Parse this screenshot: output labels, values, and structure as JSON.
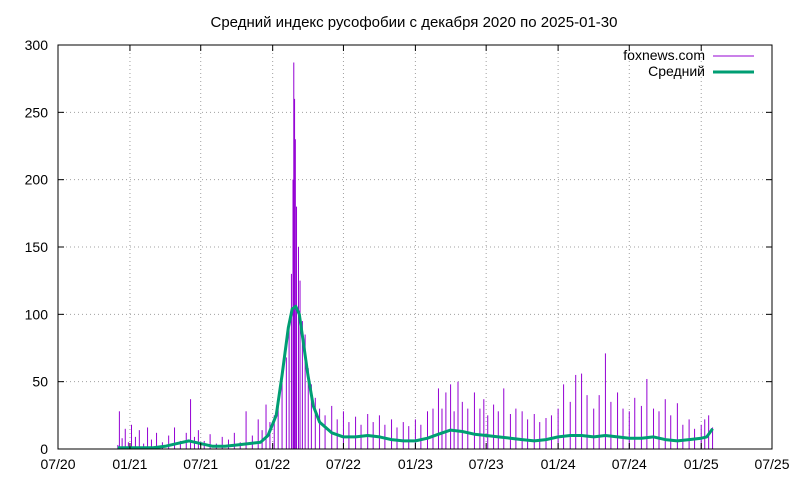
{
  "chart_data": {
    "type": "line",
    "title": "Средний индекс русофобии с декабря 2020  по 2025-01-30",
    "xlabel": "",
    "ylabel": "",
    "x_axis": {
      "type": "date",
      "range": [
        "2020-07-01",
        "2025-07-01"
      ],
      "tick_labels": [
        "07/20",
        "01/21",
        "07/21",
        "01/22",
        "07/22",
        "01/23",
        "07/23",
        "01/24",
        "07/24",
        "01/25",
        "07/25"
      ],
      "tick_dates": [
        "2020-07-01",
        "2021-01-01",
        "2021-07-01",
        "2022-01-01",
        "2022-07-01",
        "2023-01-01",
        "2023-07-01",
        "2024-01-01",
        "2024-07-01",
        "2025-01-01",
        "2025-07-01"
      ]
    },
    "y_axis": {
      "range": [
        0,
        300
      ],
      "tick_labels": [
        "0",
        "50",
        "100",
        "150",
        "200",
        "250",
        "300"
      ],
      "tick_values": [
        0,
        50,
        100,
        150,
        200,
        250,
        300
      ]
    },
    "grid": true,
    "legend_position": "top-right",
    "series": [
      {
        "name": "foxnews.com",
        "style": "impulses",
        "color": "#9400d3",
        "points": [
          [
            "2020-12-01",
            3
          ],
          [
            "2020-12-05",
            28
          ],
          [
            "2020-12-12",
            8
          ],
          [
            "2020-12-20",
            15
          ],
          [
            "2020-12-28",
            5
          ],
          [
            "2021-01-05",
            18
          ],
          [
            "2021-01-15",
            9
          ],
          [
            "2021-01-25",
            14
          ],
          [
            "2021-02-05",
            4
          ],
          [
            "2021-02-15",
            16
          ],
          [
            "2021-02-25",
            7
          ],
          [
            "2021-03-10",
            12
          ],
          [
            "2021-03-25",
            5
          ],
          [
            "2021-04-10",
            10
          ],
          [
            "2021-04-25",
            16
          ],
          [
            "2021-05-10",
            6
          ],
          [
            "2021-05-25",
            12
          ],
          [
            "2021-06-05",
            37
          ],
          [
            "2021-06-15",
            9
          ],
          [
            "2021-06-25",
            14
          ],
          [
            "2021-07-10",
            6
          ],
          [
            "2021-07-25",
            11
          ],
          [
            "2021-08-10",
            4
          ],
          [
            "2021-08-25",
            9
          ],
          [
            "2021-09-10",
            7
          ],
          [
            "2021-09-25",
            12
          ],
          [
            "2021-10-10",
            5
          ],
          [
            "2021-10-25",
            28
          ],
          [
            "2021-11-10",
            10
          ],
          [
            "2021-11-25",
            22
          ],
          [
            "2021-12-05",
            14
          ],
          [
            "2021-12-15",
            33
          ],
          [
            "2021-12-25",
            20
          ],
          [
            "2022-01-05",
            25
          ],
          [
            "2022-01-15",
            38
          ],
          [
            "2022-01-25",
            52
          ],
          [
            "2022-02-05",
            68
          ],
          [
            "2022-02-12",
            90
          ],
          [
            "2022-02-18",
            130
          ],
          [
            "2022-02-22",
            200
          ],
          [
            "2022-02-24",
            287
          ],
          [
            "2022-02-26",
            260
          ],
          [
            "2022-02-28",
            230
          ],
          [
            "2022-03-03",
            180
          ],
          [
            "2022-03-08",
            150
          ],
          [
            "2022-03-12",
            125
          ],
          [
            "2022-03-18",
            95
          ],
          [
            "2022-03-25",
            85
          ],
          [
            "2022-04-02",
            60
          ],
          [
            "2022-04-10",
            48
          ],
          [
            "2022-04-20",
            38
          ],
          [
            "2022-05-01",
            30
          ],
          [
            "2022-05-15",
            25
          ],
          [
            "2022-06-01",
            32
          ],
          [
            "2022-06-15",
            22
          ],
          [
            "2022-07-01",
            28
          ],
          [
            "2022-07-15",
            20
          ],
          [
            "2022-08-01",
            24
          ],
          [
            "2022-08-15",
            18
          ],
          [
            "2022-09-01",
            26
          ],
          [
            "2022-09-15",
            20
          ],
          [
            "2022-10-01",
            25
          ],
          [
            "2022-10-15",
            18
          ],
          [
            "2022-11-01",
            22
          ],
          [
            "2022-11-15",
            16
          ],
          [
            "2022-12-01",
            20
          ],
          [
            "2022-12-15",
            17
          ],
          [
            "2023-01-01",
            22
          ],
          [
            "2023-01-15",
            18
          ],
          [
            "2023-02-01",
            28
          ],
          [
            "2023-02-15",
            30
          ],
          [
            "2023-03-01",
            45
          ],
          [
            "2023-03-10",
            30
          ],
          [
            "2023-03-20",
            42
          ],
          [
            "2023-04-01",
            48
          ],
          [
            "2023-04-10",
            28
          ],
          [
            "2023-04-20",
            50
          ],
          [
            "2023-05-01",
            35
          ],
          [
            "2023-05-15",
            30
          ],
          [
            "2023-06-01",
            42
          ],
          [
            "2023-06-15",
            30
          ],
          [
            "2023-06-25",
            37
          ],
          [
            "2023-07-05",
            25
          ],
          [
            "2023-07-20",
            33
          ],
          [
            "2023-08-01",
            28
          ],
          [
            "2023-08-15",
            45
          ],
          [
            "2023-09-01",
            26
          ],
          [
            "2023-09-15",
            30
          ],
          [
            "2023-10-01",
            28
          ],
          [
            "2023-10-15",
            22
          ],
          [
            "2023-11-01",
            26
          ],
          [
            "2023-11-15",
            20
          ],
          [
            "2023-12-01",
            23
          ],
          [
            "2023-12-15",
            25
          ],
          [
            "2024-01-01",
            30
          ],
          [
            "2024-01-15",
            48
          ],
          [
            "2024-02-01",
            35
          ],
          [
            "2024-02-15",
            55
          ],
          [
            "2024-03-01",
            56
          ],
          [
            "2024-03-15",
            40
          ],
          [
            "2024-04-01",
            30
          ],
          [
            "2024-04-15",
            40
          ],
          [
            "2024-05-01",
            71
          ],
          [
            "2024-05-15",
            35
          ],
          [
            "2024-06-01",
            42
          ],
          [
            "2024-06-15",
            30
          ],
          [
            "2024-07-01",
            28
          ],
          [
            "2024-07-15",
            38
          ],
          [
            "2024-08-01",
            32
          ],
          [
            "2024-08-15",
            52
          ],
          [
            "2024-09-01",
            30
          ],
          [
            "2024-09-15",
            28
          ],
          [
            "2024-10-01",
            37
          ],
          [
            "2024-10-15",
            25
          ],
          [
            "2024-11-01",
            34
          ],
          [
            "2024-11-15",
            18
          ],
          [
            "2024-12-01",
            22
          ],
          [
            "2024-12-15",
            15
          ],
          [
            "2025-01-01",
            18
          ],
          [
            "2025-01-10",
            22
          ],
          [
            "2025-01-20",
            25
          ],
          [
            "2025-01-30",
            16
          ]
        ]
      },
      {
        "name": "Средний",
        "style": "line",
        "color": "#009e73",
        "points": [
          [
            "2020-12-01",
            1
          ],
          [
            "2021-01-01",
            1
          ],
          [
            "2021-02-01",
            1
          ],
          [
            "2021-03-01",
            1
          ],
          [
            "2021-04-01",
            2
          ],
          [
            "2021-05-01",
            4
          ],
          [
            "2021-06-01",
            6
          ],
          [
            "2021-07-01",
            4
          ],
          [
            "2021-08-01",
            2
          ],
          [
            "2021-09-01",
            2
          ],
          [
            "2021-10-01",
            3
          ],
          [
            "2021-11-01",
            4
          ],
          [
            "2021-12-01",
            5
          ],
          [
            "2021-12-20",
            10
          ],
          [
            "2022-01-10",
            25
          ],
          [
            "2022-01-25",
            55
          ],
          [
            "2022-02-10",
            90
          ],
          [
            "2022-02-20",
            104
          ],
          [
            "2022-03-01",
            106
          ],
          [
            "2022-03-10",
            100
          ],
          [
            "2022-03-20",
            80
          ],
          [
            "2022-04-01",
            55
          ],
          [
            "2022-04-15",
            32
          ],
          [
            "2022-05-01",
            20
          ],
          [
            "2022-06-01",
            12
          ],
          [
            "2022-07-01",
            9
          ],
          [
            "2022-08-01",
            9
          ],
          [
            "2022-09-01",
            10
          ],
          [
            "2022-10-01",
            9
          ],
          [
            "2022-11-01",
            7
          ],
          [
            "2022-12-01",
            6
          ],
          [
            "2023-01-01",
            6
          ],
          [
            "2023-02-01",
            8
          ],
          [
            "2023-03-01",
            11
          ],
          [
            "2023-04-01",
            14
          ],
          [
            "2023-05-01",
            13
          ],
          [
            "2023-06-01",
            11
          ],
          [
            "2023-07-01",
            10
          ],
          [
            "2023-08-01",
            9
          ],
          [
            "2023-09-01",
            8
          ],
          [
            "2023-10-01",
            7
          ],
          [
            "2023-11-01",
            6
          ],
          [
            "2023-12-01",
            7
          ],
          [
            "2024-01-01",
            9
          ],
          [
            "2024-02-01",
            10
          ],
          [
            "2024-03-01",
            10
          ],
          [
            "2024-04-01",
            9
          ],
          [
            "2024-05-01",
            10
          ],
          [
            "2024-06-01",
            9
          ],
          [
            "2024-07-01",
            8
          ],
          [
            "2024-08-01",
            8
          ],
          [
            "2024-09-01",
            9
          ],
          [
            "2024-10-01",
            7
          ],
          [
            "2024-11-01",
            6
          ],
          [
            "2024-12-01",
            7
          ],
          [
            "2025-01-01",
            8
          ],
          [
            "2025-01-15",
            9
          ],
          [
            "2025-01-30",
            15
          ]
        ]
      }
    ]
  }
}
